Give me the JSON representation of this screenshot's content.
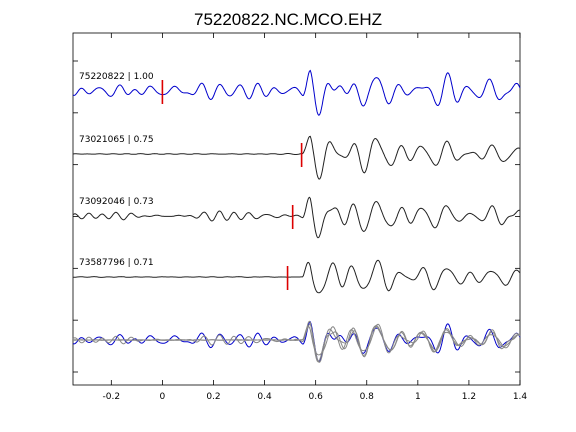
{
  "chart_data": {
    "type": "line",
    "title": "75220822.NC.MCO.EHZ",
    "xlabel": "",
    "ylabel": "",
    "xlim": [
      -0.35,
      1.4
    ],
    "xticks": [
      -0.2,
      0,
      0.2,
      0.4,
      0.6,
      0.8,
      1,
      1.2,
      1.4
    ],
    "xtick_labels": [
      "-0.2",
      "0",
      "0.2",
      "0.4",
      "0.6",
      "0.8",
      "1",
      "1.2",
      "1.4"
    ],
    "yticks_count": 7,
    "grid": false,
    "colors": {
      "master": "#0000cc",
      "match": "#222222",
      "overlay_match": "#888888",
      "pick": "#dd0000"
    },
    "series": [
      {
        "name": "75220822 | 1.00",
        "role": "master",
        "pick_time": 0.0,
        "noise_level": 0.55,
        "signal_amp": 1.0,
        "seed": 11
      },
      {
        "name": "73021065 | 0.75",
        "role": "match",
        "pick_time": 0.545,
        "noise_level": 0.04,
        "signal_amp": 1.0,
        "seed": 23
      },
      {
        "name": "73092046 | 0.73",
        "role": "match",
        "pick_time": 0.51,
        "noise_level": 0.25,
        "signal_amp": 1.0,
        "seed": 37
      },
      {
        "name": "73587796 | 0.71",
        "role": "match",
        "pick_time": 0.49,
        "noise_level": 0.02,
        "signal_amp": 1.0,
        "seed": 51
      }
    ]
  }
}
